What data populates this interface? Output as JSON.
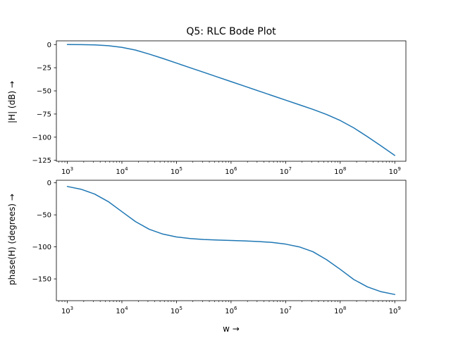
{
  "chart_data": [
    {
      "type": "line",
      "title": "Q5: RLC Bode Plot",
      "xlabel": "",
      "ylabel": "|H| (dB) →",
      "xscale": "log",
      "xlim": [
        630,
        1600000000
      ],
      "ylim": [
        -126,
        4
      ],
      "xticks": [
        {
          "base": "10",
          "exp": "3",
          "value": 1000
        },
        {
          "base": "10",
          "exp": "4",
          "value": 10000
        },
        {
          "base": "10",
          "exp": "5",
          "value": 100000
        },
        {
          "base": "10",
          "exp": "6",
          "value": 1000000
        },
        {
          "base": "10",
          "exp": "7",
          "value": 10000000
        },
        {
          "base": "10",
          "exp": "8",
          "value": 100000000
        },
        {
          "base": "10",
          "exp": "9",
          "value": 1000000000
        }
      ],
      "yticks": [
        {
          "label": "0",
          "value": 0
        },
        {
          "label": "−25",
          "value": -25
        },
        {
          "label": "−50",
          "value": -50
        },
        {
          "label": "−75",
          "value": -75
        },
        {
          "label": "−100",
          "value": -100
        },
        {
          "label": "−125",
          "value": -125
        }
      ],
      "grid": false,
      "color": "#1f77b4",
      "series": [
        {
          "x": [
            1000,
            1778,
            3162,
            5623,
            10000,
            17783,
            31623,
            56234,
            100000,
            177828,
            316228,
            562341,
            1000000,
            1778279,
            3162278,
            5623413,
            10000000,
            17782794,
            31622777,
            56234133,
            100000000,
            177827941,
            316227766,
            562341325,
            1000000000
          ],
          "y": [
            0,
            -0.1,
            -0.4,
            -1.2,
            -3,
            -6,
            -10.3,
            -15,
            -20,
            -25,
            -30,
            -35,
            -40,
            -45,
            -50,
            -55,
            -60,
            -65,
            -70,
            -75.5,
            -82,
            -90,
            -99.5,
            -109.5,
            -119.7
          ]
        }
      ]
    },
    {
      "type": "line",
      "title": "",
      "xlabel": "w →",
      "ylabel": "phase(H) (degrees) →",
      "xscale": "log",
      "xlim": [
        630,
        1600000000
      ],
      "ylim": [
        -184,
        4
      ],
      "xticks": [
        {
          "base": "10",
          "exp": "3",
          "value": 1000
        },
        {
          "base": "10",
          "exp": "4",
          "value": 10000
        },
        {
          "base": "10",
          "exp": "5",
          "value": 100000
        },
        {
          "base": "10",
          "exp": "6",
          "value": 1000000
        },
        {
          "base": "10",
          "exp": "7",
          "value": 10000000
        },
        {
          "base": "10",
          "exp": "8",
          "value": 100000000
        },
        {
          "base": "10",
          "exp": "9",
          "value": 1000000000
        }
      ],
      "yticks": [
        {
          "label": "0",
          "value": 0
        },
        {
          "label": "−50",
          "value": -50
        },
        {
          "label": "−100",
          "value": -100
        },
        {
          "label": "−150",
          "value": -150
        }
      ],
      "grid": false,
      "color": "#1f77b4",
      "series": [
        {
          "x": [
            1000,
            1778,
            3162,
            5623,
            10000,
            17783,
            31623,
            56234,
            100000,
            177828,
            316228,
            562341,
            1000000,
            1778279,
            3162278,
            5623413,
            10000000,
            17782794,
            31622777,
            56234133,
            100000000,
            177827941,
            316227766,
            562341325,
            1000000000
          ],
          "y": [
            -5.7,
            -10,
            -17.5,
            -29.3,
            -45,
            -60.6,
            -72.5,
            -80,
            -84.5,
            -87,
            -88.5,
            -89.3,
            -90,
            -90.7,
            -91.6,
            -93,
            -95.7,
            -100,
            -107.5,
            -120,
            -135,
            -151,
            -162.5,
            -170,
            -174.3
          ]
        }
      ]
    }
  ]
}
